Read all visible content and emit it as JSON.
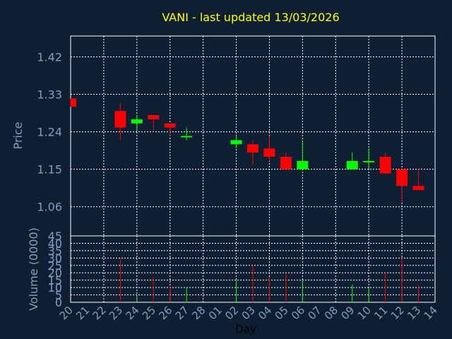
{
  "chart_data": {
    "type": "candlestick",
    "title": "VANI - last updated 13/03/2026",
    "xlabel": "Day",
    "price_panel": {
      "ylabel": "Price",
      "ylim": [
        0.99,
        1.47
      ],
      "yticks": [
        "1.42",
        "1.33",
        "1.24",
        "1.15",
        "1.06"
      ],
      "ytick_values": [
        1.42,
        1.33,
        1.24,
        1.15,
        1.06
      ]
    },
    "volume_panel": {
      "ylabel": "Volume (0000)",
      "ylim": [
        0,
        45
      ],
      "yticks": [
        "45",
        "40",
        "35",
        "30",
        "25",
        "20",
        "15",
        "10",
        "5",
        "0"
      ],
      "ytick_values": [
        45,
        40,
        35,
        30,
        25,
        20,
        15,
        10,
        5,
        0
      ]
    },
    "categories": [
      "20",
      "21",
      "22",
      "23",
      "24",
      "25",
      "26",
      "27",
      "28",
      "01",
      "02",
      "03",
      "04",
      "05",
      "06",
      "07",
      "08",
      "09",
      "10",
      "11",
      "12",
      "13",
      "14"
    ],
    "candles": [
      {
        "day": "20",
        "open": 1.32,
        "high": 1.32,
        "low": 1.3,
        "close": 1.3
      },
      {
        "day": "23",
        "open": 1.29,
        "high": 1.31,
        "low": 1.22,
        "close": 1.25
      },
      {
        "day": "24",
        "open": 1.26,
        "high": 1.28,
        "low": 1.24,
        "close": 1.27
      },
      {
        "day": "25",
        "open": 1.28,
        "high": 1.28,
        "low": 1.24,
        "close": 1.27
      },
      {
        "day": "26",
        "open": 1.26,
        "high": 1.26,
        "low": 1.23,
        "close": 1.25
      },
      {
        "day": "27",
        "open": 1.23,
        "high": 1.25,
        "low": 1.22,
        "close": 1.23
      },
      {
        "day": "02",
        "open": 1.21,
        "high": 1.23,
        "low": 1.2,
        "close": 1.22
      },
      {
        "day": "03",
        "open": 1.21,
        "high": 1.22,
        "low": 1.16,
        "close": 1.19
      },
      {
        "day": "04",
        "open": 1.2,
        "high": 1.23,
        "low": 1.17,
        "close": 1.18
      },
      {
        "day": "05",
        "open": 1.18,
        "high": 1.19,
        "low": 1.15,
        "close": 1.15
      },
      {
        "day": "06",
        "open": 1.15,
        "high": 1.22,
        "low": 1.15,
        "close": 1.17
      },
      {
        "day": "09",
        "open": 1.15,
        "high": 1.19,
        "low": 1.15,
        "close": 1.17
      },
      {
        "day": "10",
        "open": 1.17,
        "high": 1.2,
        "low": 1.15,
        "close": 1.17
      },
      {
        "day": "11",
        "open": 1.18,
        "high": 1.19,
        "low": 1.14,
        "close": 1.14
      },
      {
        "day": "12",
        "open": 1.15,
        "high": 1.15,
        "low": 1.07,
        "close": 1.11
      },
      {
        "day": "13",
        "open": 1.11,
        "high": 1.15,
        "low": 1.1,
        "close": 1.1
      }
    ],
    "volume": [
      {
        "day": "23",
        "value": 30,
        "direction": "down"
      },
      {
        "day": "24",
        "value": 5,
        "direction": "up"
      },
      {
        "day": "25",
        "value": 17,
        "direction": "down"
      },
      {
        "day": "26",
        "value": 11,
        "direction": "down"
      },
      {
        "day": "27",
        "value": 10,
        "direction": "up"
      },
      {
        "day": "02",
        "value": 15,
        "direction": "up"
      },
      {
        "day": "03",
        "value": 26,
        "direction": "down"
      },
      {
        "day": "04",
        "value": 17,
        "direction": "down"
      },
      {
        "day": "05",
        "value": 19,
        "direction": "down"
      },
      {
        "day": "06",
        "value": 15,
        "direction": "up"
      },
      {
        "day": "09",
        "value": 12,
        "direction": "up"
      },
      {
        "day": "10",
        "value": 10,
        "direction": "up"
      },
      {
        "day": "11",
        "value": 20,
        "direction": "down"
      },
      {
        "day": "12",
        "value": 30,
        "direction": "down"
      },
      {
        "day": "13",
        "value": 12,
        "direction": "down"
      }
    ],
    "grid": true,
    "colors": {
      "background": "#0f1f33",
      "plot_border": "#ffffff",
      "grid": "#ffffff",
      "title": "#ffff00",
      "axis_text": "#7f9fbf",
      "up": "#00ff00",
      "down": "#ff0000",
      "xlabel": "#000000"
    }
  }
}
